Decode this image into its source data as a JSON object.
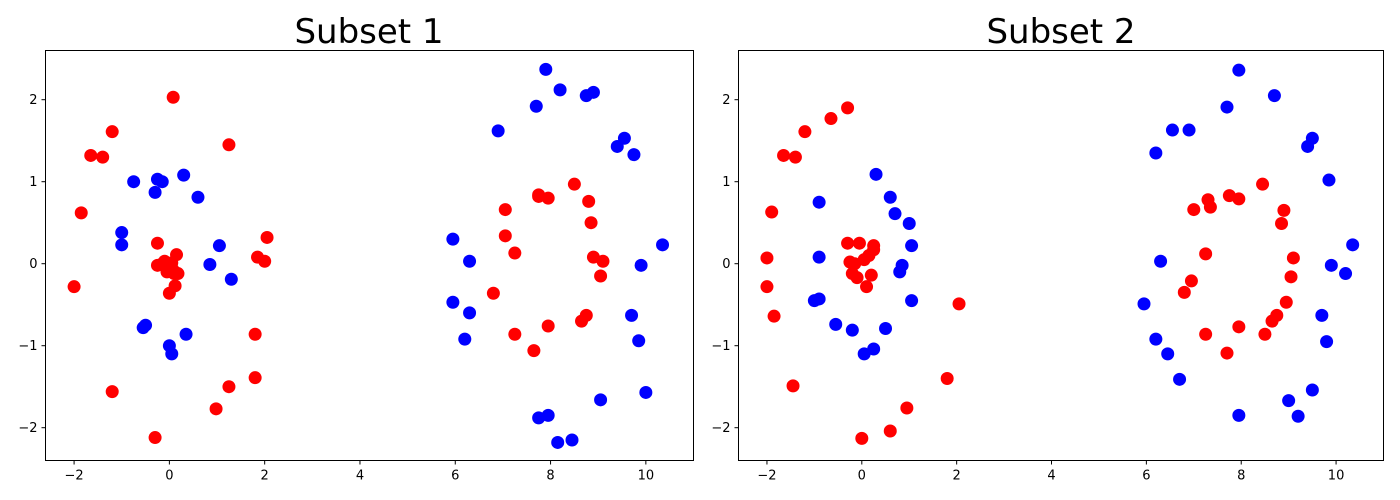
{
  "chart_data": [
    {
      "type": "scatter",
      "title": "Subset 1",
      "xlim": [
        -2.6,
        11.0
      ],
      "ylim": [
        -2.4,
        2.6
      ],
      "xticks": [
        -2,
        0,
        2,
        4,
        6,
        8,
        10
      ],
      "yticks": [
        -2,
        -1,
        0,
        1,
        2
      ],
      "xtick_labels": [
        "−2",
        "0",
        "2",
        "4",
        "6",
        "8",
        "10"
      ],
      "ytick_labels": [
        "−2",
        "−1",
        "0",
        "1",
        "2"
      ],
      "grid": false,
      "series": [
        {
          "color": "#ff0000",
          "points": [
            [
              -2.0,
              -0.28
            ],
            [
              -1.85,
              0.62
            ],
            [
              -1.65,
              1.32
            ],
            [
              -1.4,
              1.3
            ],
            [
              -1.2,
              1.61
            ],
            [
              -1.2,
              -1.56
            ],
            [
              -0.3,
              -2.12
            ],
            [
              -0.25,
              0.25
            ],
            [
              -0.25,
              -0.02
            ],
            [
              -0.15,
              0.0
            ],
            [
              -0.1,
              0.03
            ],
            [
              -0.05,
              -0.1
            ],
            [
              0.0,
              -0.02
            ],
            [
              0.0,
              -0.36
            ],
            [
              0.05,
              0.01
            ],
            [
              0.08,
              -0.08
            ],
            [
              0.1,
              -0.12
            ],
            [
              0.12,
              -0.27
            ],
            [
              0.15,
              0.11
            ],
            [
              0.18,
              -0.12
            ],
            [
              0.08,
              2.03
            ],
            [
              0.98,
              -1.77
            ],
            [
              1.25,
              1.45
            ],
            [
              1.25,
              -1.5
            ],
            [
              1.8,
              -0.86
            ],
            [
              1.8,
              -1.39
            ],
            [
              1.85,
              0.08
            ],
            [
              2.0,
              0.03
            ],
            [
              2.05,
              0.32
            ],
            [
              6.8,
              -0.36
            ],
            [
              7.05,
              0.66
            ],
            [
              7.05,
              0.34
            ],
            [
              7.25,
              0.13
            ],
            [
              7.25,
              -0.86
            ],
            [
              7.65,
              -1.06
            ],
            [
              7.75,
              0.84
            ],
            [
              7.75,
              0.82
            ],
            [
              7.95,
              0.8
            ],
            [
              7.95,
              -0.76
            ],
            [
              8.5,
              0.97
            ],
            [
              8.65,
              -0.7
            ],
            [
              8.75,
              -0.63
            ],
            [
              8.8,
              0.76
            ],
            [
              8.85,
              0.5
            ],
            [
              8.9,
              0.08
            ],
            [
              9.05,
              -0.15
            ],
            [
              9.1,
              0.03
            ]
          ]
        },
        {
          "color": "#0000ff",
          "points": [
            [
              -1.0,
              0.38
            ],
            [
              -1.0,
              0.23
            ],
            [
              -0.75,
              1.0
            ],
            [
              -0.55,
              -0.78
            ],
            [
              -0.5,
              -0.75
            ],
            [
              -0.3,
              0.87
            ],
            [
              -0.25,
              1.03
            ],
            [
              -0.15,
              1.0
            ],
            [
              0.0,
              -1.0
            ],
            [
              0.05,
              -1.1
            ],
            [
              0.3,
              1.08
            ],
            [
              0.35,
              -0.86
            ],
            [
              0.6,
              0.81
            ],
            [
              0.85,
              -0.01
            ],
            [
              1.05,
              0.22
            ],
            [
              1.3,
              -0.19
            ],
            [
              5.95,
              0.3
            ],
            [
              5.95,
              -0.47
            ],
            [
              6.2,
              -0.92
            ],
            [
              6.3,
              0.03
            ],
            [
              6.3,
              -0.6
            ],
            [
              6.9,
              1.62
            ],
            [
              7.7,
              1.92
            ],
            [
              7.75,
              -1.88
            ],
            [
              7.9,
              2.37
            ],
            [
              7.95,
              -1.85
            ],
            [
              8.15,
              -2.18
            ],
            [
              8.2,
              2.12
            ],
            [
              8.45,
              -2.15
            ],
            [
              8.75,
              2.05
            ],
            [
              8.9,
              2.09
            ],
            [
              9.05,
              -1.66
            ],
            [
              9.4,
              1.43
            ],
            [
              9.55,
              1.53
            ],
            [
              9.7,
              -0.63
            ],
            [
              9.75,
              1.33
            ],
            [
              9.85,
              -0.94
            ],
            [
              9.9,
              -0.02
            ],
            [
              10.0,
              -1.57
            ],
            [
              10.35,
              0.23
            ]
          ]
        }
      ]
    },
    {
      "type": "scatter",
      "title": "Subset 2",
      "xlim": [
        -2.6,
        11.0
      ],
      "ylim": [
        -2.4,
        2.6
      ],
      "xticks": [
        -2,
        0,
        2,
        4,
        6,
        8,
        10
      ],
      "yticks": [
        -2,
        -1,
        0,
        1,
        2
      ],
      "xtick_labels": [
        "−2",
        "0",
        "2",
        "4",
        "6",
        "8",
        "10"
      ],
      "ytick_labels": [
        "−2",
        "−1",
        "0",
        "1",
        "2"
      ],
      "grid": false,
      "series": [
        {
          "color": "#ff0000",
          "points": [
            [
              -2.0,
              0.07
            ],
            [
              -2.0,
              -0.28
            ],
            [
              -1.9,
              0.63
            ],
            [
              -1.85,
              -0.64
            ],
            [
              -1.65,
              1.32
            ],
            [
              -1.4,
              1.3
            ],
            [
              -1.45,
              -1.49
            ],
            [
              -1.2,
              1.61
            ],
            [
              -0.65,
              1.77
            ],
            [
              -0.3,
              1.9
            ],
            [
              -0.3,
              0.25
            ],
            [
              -0.25,
              0.02
            ],
            [
              -0.2,
              -0.12
            ],
            [
              -0.15,
              0.0
            ],
            [
              -0.1,
              -0.17
            ],
            [
              -0.05,
              0.25
            ],
            [
              0.05,
              0.05
            ],
            [
              0.1,
              -0.28
            ],
            [
              0.15,
              0.1
            ],
            [
              0.2,
              -0.14
            ],
            [
              0.25,
              0.22
            ],
            [
              0.25,
              0.17
            ],
            [
              0.0,
              -2.13
            ],
            [
              0.6,
              -2.04
            ],
            [
              0.95,
              -1.76
            ],
            [
              1.8,
              -1.4
            ],
            [
              2.05,
              -0.49
            ],
            [
              6.8,
              -0.35
            ],
            [
              6.95,
              -0.21
            ],
            [
              7.0,
              0.66
            ],
            [
              7.25,
              0.12
            ],
            [
              7.25,
              -0.86
            ],
            [
              7.3,
              0.78
            ],
            [
              7.35,
              0.69
            ],
            [
              7.7,
              -1.09
            ],
            [
              7.75,
              0.83
            ],
            [
              7.95,
              0.79
            ],
            [
              7.95,
              -0.77
            ],
            [
              8.45,
              0.97
            ],
            [
              8.5,
              -0.86
            ],
            [
              8.65,
              -0.7
            ],
            [
              8.75,
              -0.63
            ],
            [
              8.85,
              0.49
            ],
            [
              8.9,
              0.65
            ],
            [
              8.95,
              -0.47
            ],
            [
              9.05,
              -0.16
            ],
            [
              9.1,
              0.07
            ]
          ]
        },
        {
          "color": "#0000ff",
          "points": [
            [
              -1.0,
              -0.45
            ],
            [
              -0.9,
              0.75
            ],
            [
              -0.9,
              -0.43
            ],
            [
              -0.9,
              0.08
            ],
            [
              -0.55,
              -0.74
            ],
            [
              -0.2,
              -0.81
            ],
            [
              0.05,
              -1.1
            ],
            [
              0.25,
              -1.04
            ],
            [
              0.3,
              1.09
            ],
            [
              0.5,
              -0.79
            ],
            [
              0.6,
              0.81
            ],
            [
              0.7,
              0.61
            ],
            [
              0.8,
              -0.1
            ],
            [
              0.85,
              -0.02
            ],
            [
              1.0,
              0.49
            ],
            [
              1.05,
              0.22
            ],
            [
              1.05,
              -0.45
            ],
            [
              5.95,
              -0.49
            ],
            [
              6.2,
              1.35
            ],
            [
              6.2,
              -0.92
            ],
            [
              6.3,
              0.03
            ],
            [
              6.45,
              -1.1
            ],
            [
              6.55,
              1.63
            ],
            [
              6.7,
              -1.41
            ],
            [
              6.9,
              1.63
            ],
            [
              7.7,
              1.91
            ],
            [
              7.95,
              2.36
            ],
            [
              7.95,
              -1.85
            ],
            [
              8.7,
              2.05
            ],
            [
              9.0,
              -1.67
            ],
            [
              9.2,
              -1.86
            ],
            [
              9.4,
              1.43
            ],
            [
              9.5,
              1.53
            ],
            [
              9.5,
              -1.54
            ],
            [
              9.7,
              -0.63
            ],
            [
              9.8,
              -0.95
            ],
            [
              9.85,
              1.02
            ],
            [
              9.9,
              -0.02
            ],
            [
              10.2,
              -0.12
            ],
            [
              10.35,
              0.23
            ]
          ]
        }
      ]
    }
  ]
}
